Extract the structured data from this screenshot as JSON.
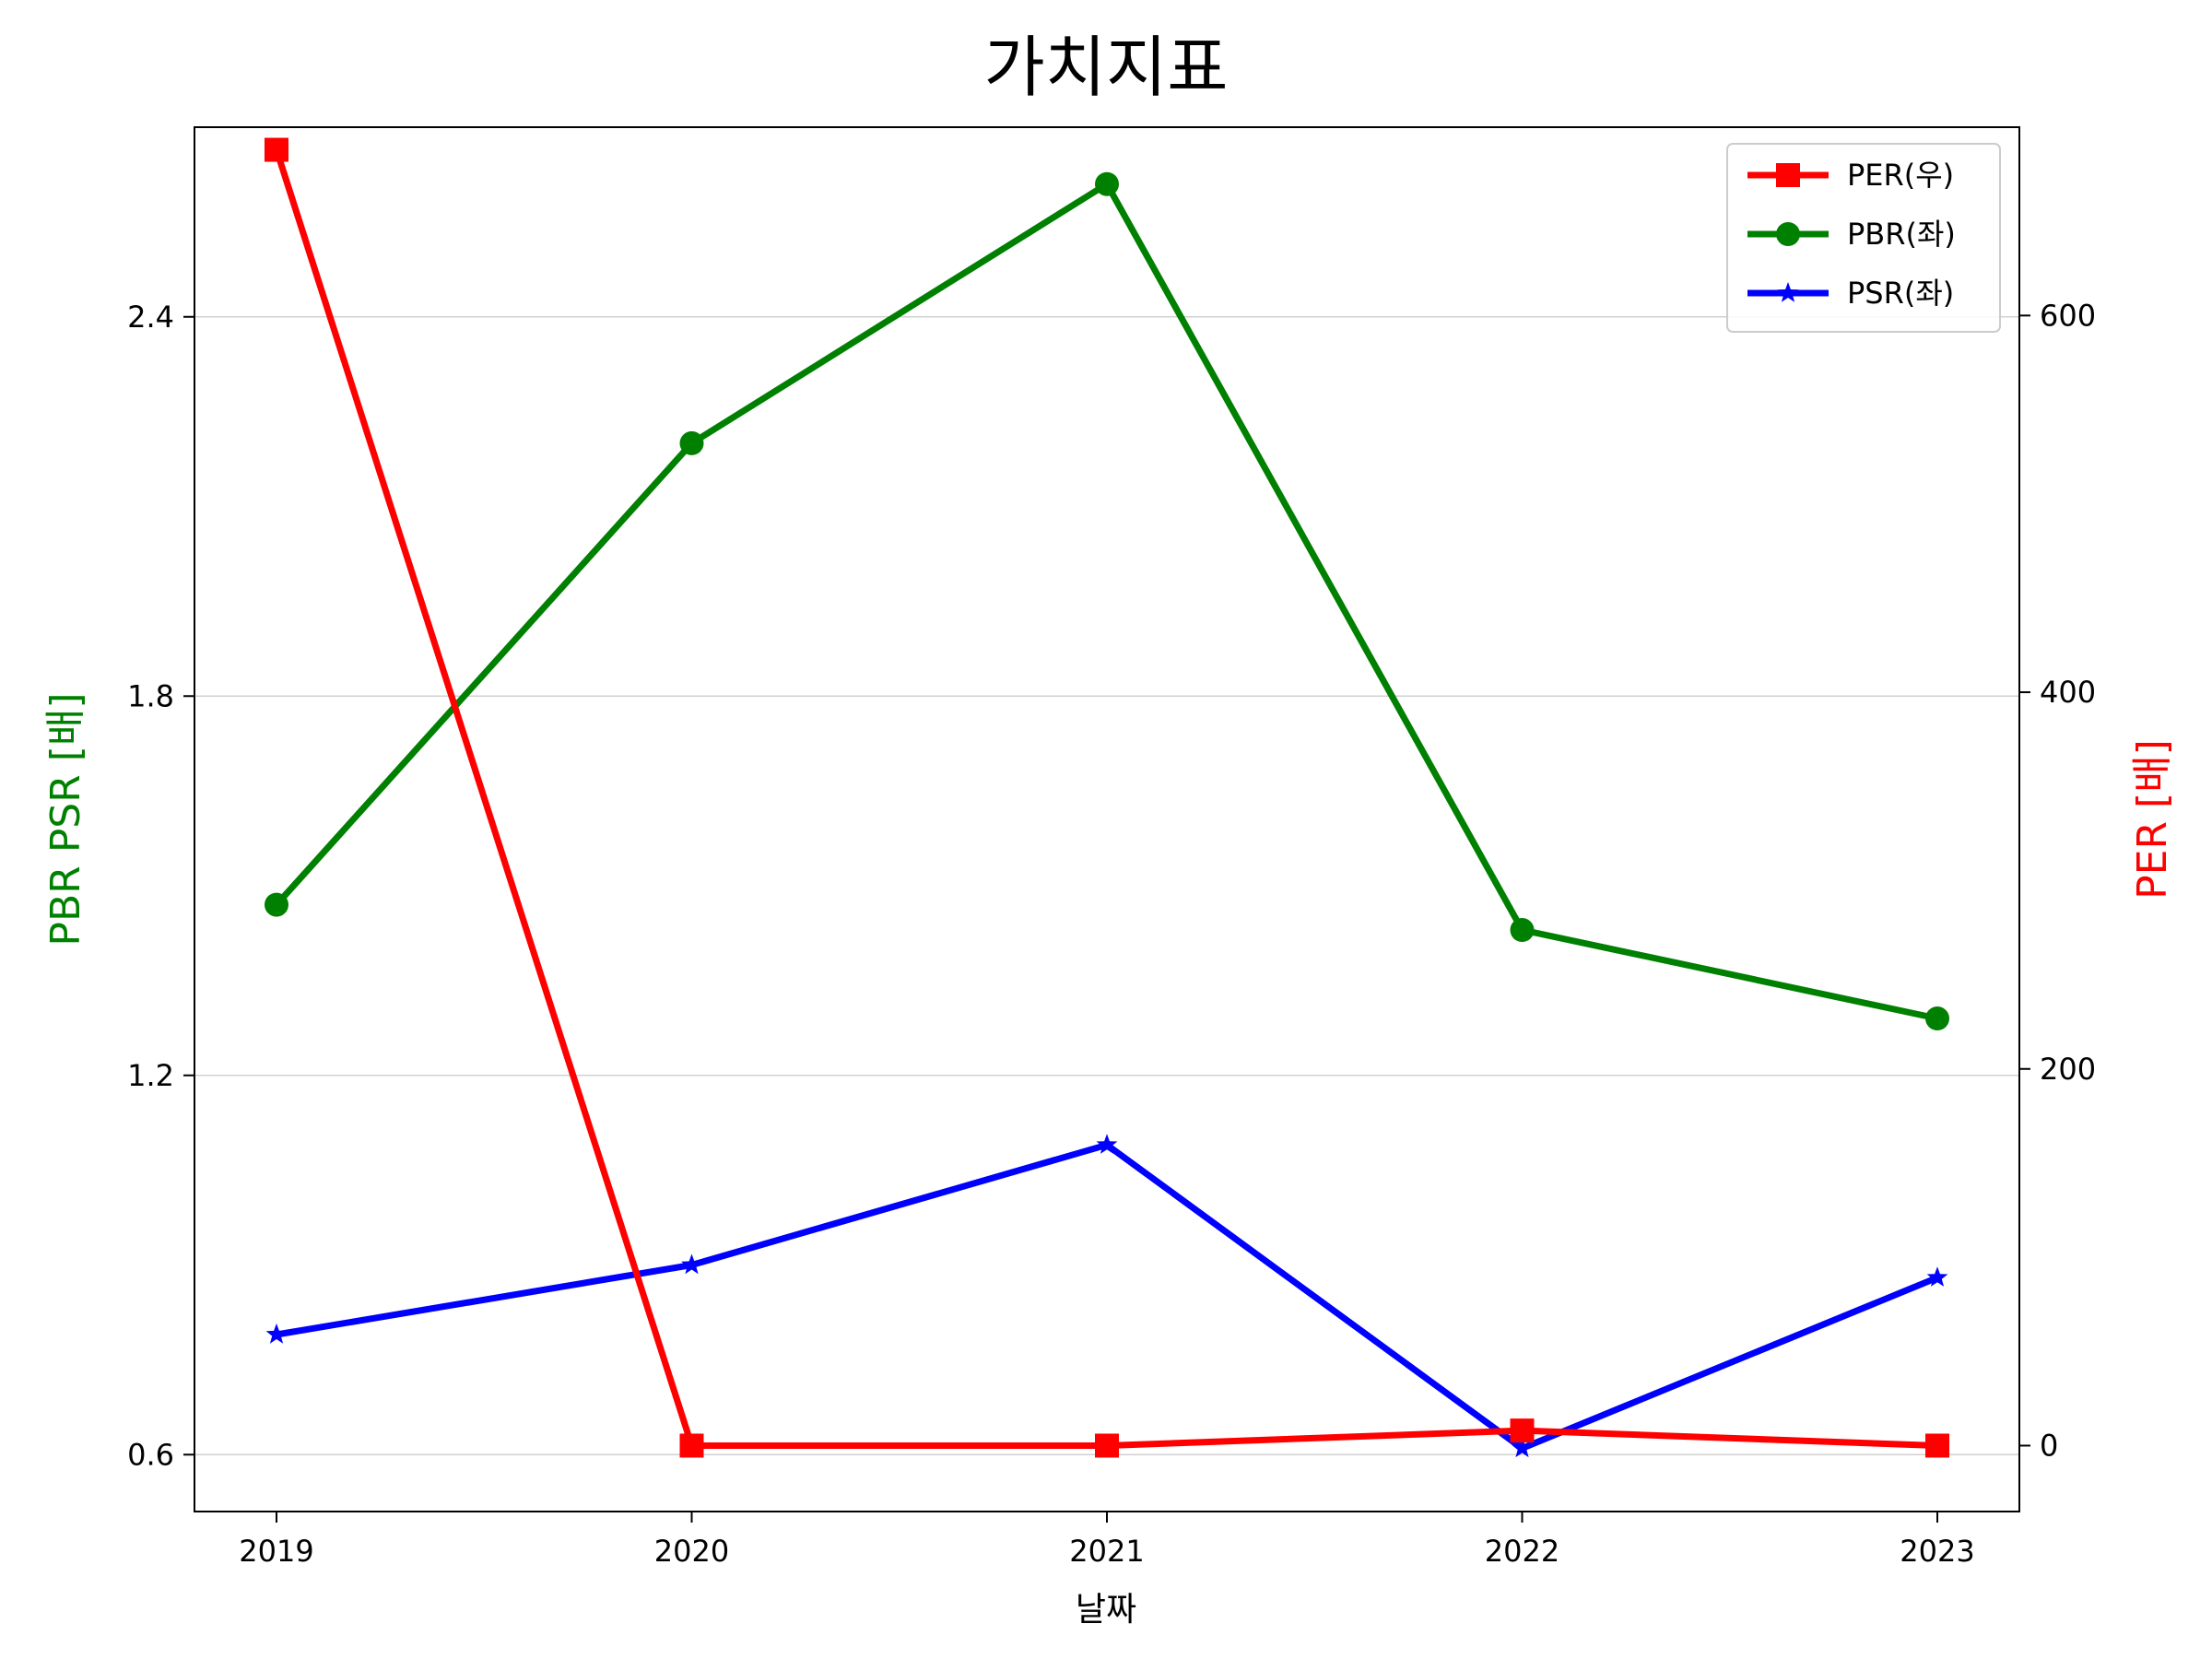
{
  "chart_data": {
    "type": "line",
    "title": "가치지표",
    "xlabel": "날짜",
    "ylabel_left": "PBR PSR [배]",
    "ylabel_right": "PER [배]",
    "categories": [
      "2019",
      "2020",
      "2021",
      "2022",
      "2023"
    ],
    "left_axis": {
      "ylim": [
        0.51,
        2.7
      ],
      "ticks": [
        "0.6",
        "1.2",
        "1.8",
        "2.4"
      ],
      "label_color": "#008000"
    },
    "right_axis": {
      "ylim": [
        -35,
        700
      ],
      "ticks": [
        "0",
        "200",
        "400",
        "600"
      ],
      "label_color": "#ff0000"
    },
    "grid": {
      "y": true,
      "x": false
    },
    "legend_position": "top-right",
    "series": [
      {
        "name": "PER(우)",
        "axis": "right",
        "color": "#ff0000",
        "marker": "square",
        "values": [
          688,
          0,
          0,
          8,
          0
        ]
      },
      {
        "name": "PBR(좌)",
        "axis": "left",
        "color": "#008000",
        "marker": "circle",
        "values": [
          1.47,
          2.2,
          2.61,
          1.43,
          1.29
        ]
      },
      {
        "name": "PSR(좌)",
        "axis": "left",
        "color": "#0000ff",
        "marker": "star",
        "values": [
          0.79,
          0.9,
          1.09,
          0.61,
          0.88
        ]
      }
    ]
  }
}
